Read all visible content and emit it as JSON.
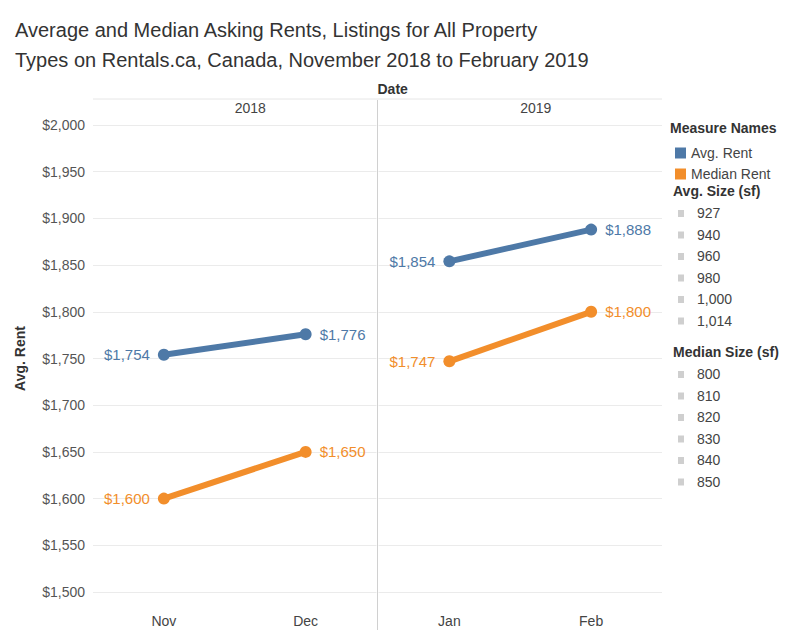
{
  "chart_data": {
    "type": "line",
    "title": "Average and Median Asking Rents, Listings for All Property\nTypes on Rentals.ca, Canada, November 2018 to February 2019",
    "x_label": "Date",
    "y_label": "Avg. Rent",
    "panels": [
      {
        "label": "2018",
        "categories": [
          "Nov",
          "Dec"
        ]
      },
      {
        "label": "2019",
        "categories": [
          "Jan",
          "Feb"
        ]
      }
    ],
    "series": [
      {
        "name": "Avg. Rent",
        "color": "#4e79a7",
        "values": [
          1754,
          1776,
          1854,
          1888
        ],
        "value_labels": [
          "$1,754",
          "$1,776",
          "$1,854",
          "$1,888"
        ]
      },
      {
        "name": "Median Rent",
        "color": "#f28e2b",
        "values": [
          1600,
          1650,
          1747,
          1800
        ],
        "value_labels": [
          "$1,600",
          "$1,650",
          "$1,747",
          "$1,800"
        ]
      }
    ],
    "ylim": [
      1500,
      2000
    ],
    "yticks": [
      {
        "value": 1500,
        "label": "$1,500"
      },
      {
        "value": 1550,
        "label": "$1,550"
      },
      {
        "value": 1600,
        "label": "$1,600"
      },
      {
        "value": 1650,
        "label": "$1,650"
      },
      {
        "value": 1700,
        "label": "$1,700"
      },
      {
        "value": 1750,
        "label": "$1,750"
      },
      {
        "value": 1800,
        "label": "$1,800"
      },
      {
        "value": 1850,
        "label": "$1,850"
      },
      {
        "value": 1900,
        "label": "$1,900"
      },
      {
        "value": 1950,
        "label": "$1,950"
      },
      {
        "value": 2000,
        "label": "$2,000"
      }
    ],
    "grid": true,
    "data_labels": true,
    "legend_title": "Measure Names",
    "size_legends": [
      {
        "title": "Avg. Size (sf)",
        "values": [
          927,
          940,
          960,
          980,
          {
            "value": 1000,
            "label": "1,000"
          },
          {
            "value": 1014,
            "label": "1,014"
          }
        ]
      },
      {
        "title": "Median Size (sf)",
        "values": [
          800,
          810,
          820,
          830,
          840,
          850
        ]
      }
    ]
  }
}
